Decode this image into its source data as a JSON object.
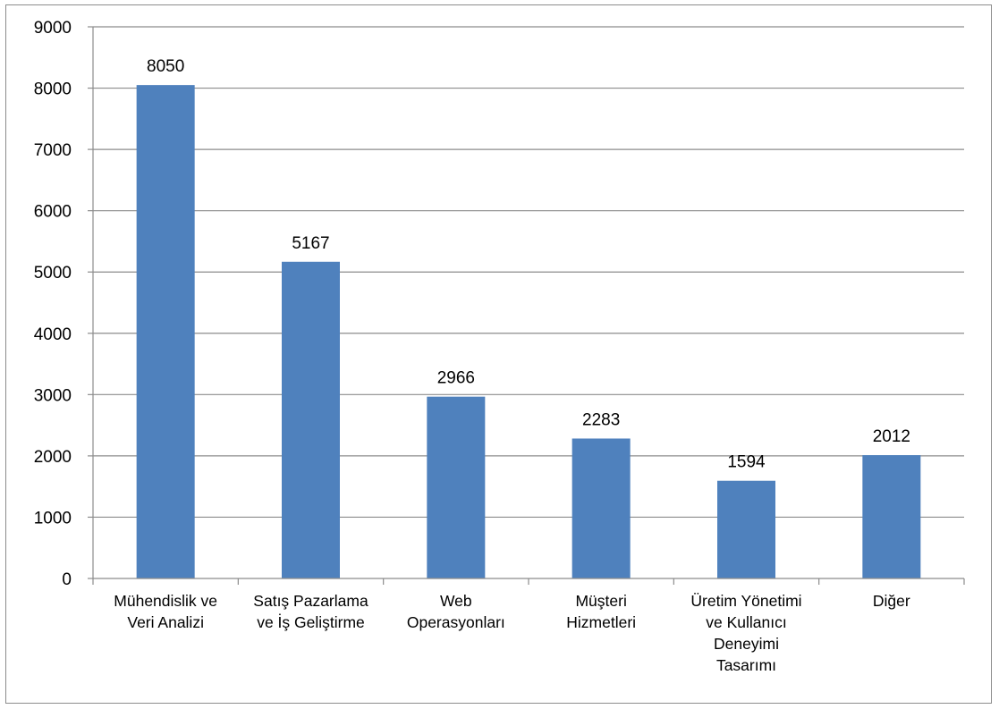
{
  "chart_data": {
    "type": "bar",
    "title": "",
    "xlabel": "",
    "ylabel": "",
    "ylim": [
      0,
      9000
    ],
    "yticks": [
      0,
      1000,
      2000,
      3000,
      4000,
      5000,
      6000,
      7000,
      8000,
      9000
    ],
    "grid": true,
    "legend": "none",
    "bar_color": "#4f81bd",
    "categories": [
      [
        "Mühendislik ve",
        "Veri Analizi"
      ],
      [
        "Satış Pazarlama",
        "ve İş Geliştirme"
      ],
      [
        "Web",
        "Operasyonları"
      ],
      [
        "Müşteri",
        "Hizmetleri"
      ],
      [
        "Üretim Yönetimi",
        "ve Kullanıcı",
        "Deneyimi",
        "Tasarımı"
      ],
      [
        "Diğer"
      ]
    ],
    "values": [
      8050,
      5167,
      2966,
      2283,
      1594,
      2012
    ],
    "data_labels": [
      "8050",
      "5167",
      "2966",
      "2283",
      "1594",
      "2012"
    ]
  }
}
